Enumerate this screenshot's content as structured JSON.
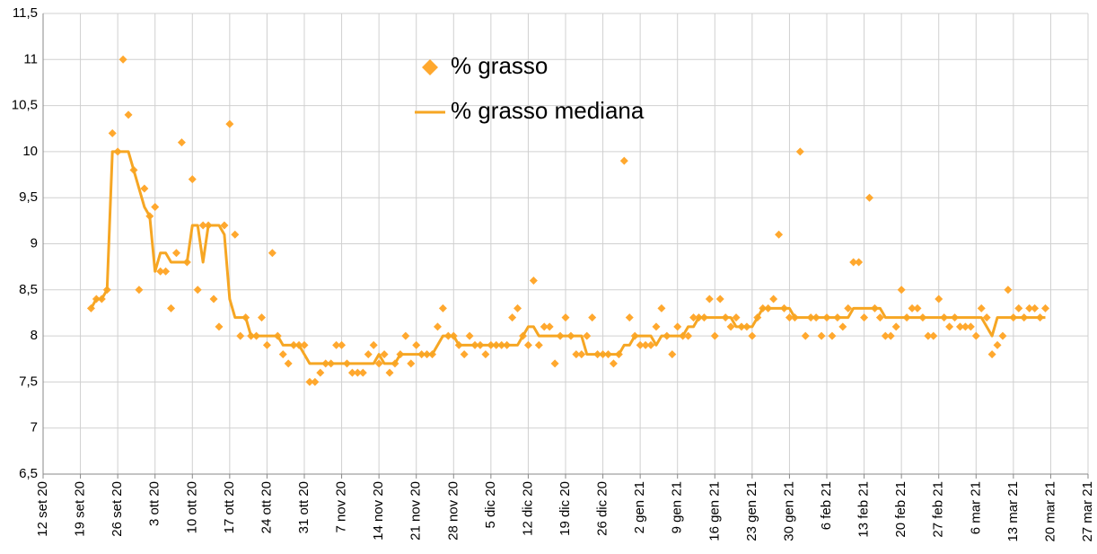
{
  "chart_data": {
    "type": "scatter_line",
    "x": [
      "2020-09-21",
      "2020-09-22",
      "2020-09-23",
      "2020-09-24",
      "2020-09-25",
      "2020-09-26",
      "2020-09-27",
      "2020-09-28",
      "2020-09-29",
      "2020-09-30",
      "2020-10-01",
      "2020-10-02",
      "2020-10-03",
      "2020-10-04",
      "2020-10-05",
      "2020-10-06",
      "2020-10-07",
      "2020-10-08",
      "2020-10-09",
      "2020-10-10",
      "2020-10-11",
      "2020-10-12",
      "2020-10-13",
      "2020-10-14",
      "2020-10-15",
      "2020-10-16",
      "2020-10-17",
      "2020-10-18",
      "2020-10-19",
      "2020-10-20",
      "2020-10-21",
      "2020-10-22",
      "2020-10-23",
      "2020-10-24",
      "2020-10-25",
      "2020-10-26",
      "2020-10-27",
      "2020-10-28",
      "2020-10-29",
      "2020-10-30",
      "2020-10-31",
      "2020-11-01",
      "2020-11-02",
      "2020-11-03",
      "2020-11-04",
      "2020-11-05",
      "2020-11-06",
      "2020-11-07",
      "2020-11-08",
      "2020-11-09",
      "2020-11-10",
      "2020-11-11",
      "2020-11-12",
      "2020-11-13",
      "2020-11-14",
      "2020-11-15",
      "2020-11-16",
      "2020-11-17",
      "2020-11-18",
      "2020-11-19",
      "2020-11-20",
      "2020-11-21",
      "2020-11-22",
      "2020-11-23",
      "2020-11-24",
      "2020-11-25",
      "2020-11-26",
      "2020-11-27",
      "2020-11-28",
      "2020-11-29",
      "2020-11-30",
      "2020-12-01",
      "2020-12-02",
      "2020-12-03",
      "2020-12-04",
      "2020-12-05",
      "2020-12-06",
      "2020-12-07",
      "2020-12-08",
      "2020-12-09",
      "2020-12-10",
      "2020-12-11",
      "2020-12-12",
      "2020-12-13",
      "2020-12-14",
      "2020-12-15",
      "2020-12-16",
      "2020-12-17",
      "2020-12-18",
      "2020-12-19",
      "2020-12-20",
      "2020-12-21",
      "2020-12-22",
      "2020-12-23",
      "2020-12-24",
      "2020-12-25",
      "2020-12-26",
      "2020-12-27",
      "2020-12-28",
      "2020-12-29",
      "2020-12-30",
      "2020-12-31",
      "2021-01-01",
      "2021-01-02",
      "2021-01-03",
      "2021-01-04",
      "2021-01-05",
      "2021-01-06",
      "2021-01-07",
      "2021-01-08",
      "2021-01-09",
      "2021-01-10",
      "2021-01-11",
      "2021-01-12",
      "2021-01-13",
      "2021-01-14",
      "2021-01-15",
      "2021-01-16",
      "2021-01-17",
      "2021-01-18",
      "2021-01-19",
      "2021-01-20",
      "2021-01-21",
      "2021-01-22",
      "2021-01-23",
      "2021-01-24",
      "2021-01-25",
      "2021-01-26",
      "2021-01-27",
      "2021-01-28",
      "2021-01-29",
      "2021-01-30",
      "2021-01-31",
      "2021-02-01",
      "2021-02-02",
      "2021-02-03",
      "2021-02-04",
      "2021-02-05",
      "2021-02-06",
      "2021-02-07",
      "2021-02-08",
      "2021-02-09",
      "2021-02-10",
      "2021-02-11",
      "2021-02-12",
      "2021-02-13",
      "2021-02-14",
      "2021-02-15",
      "2021-02-16",
      "2021-02-17",
      "2021-02-18",
      "2021-02-19",
      "2021-02-20",
      "2021-02-21",
      "2021-02-22",
      "2021-02-23",
      "2021-02-24",
      "2021-02-25",
      "2021-02-26",
      "2021-02-27",
      "2021-02-28",
      "2021-03-01",
      "2021-03-02",
      "2021-03-03",
      "2021-03-04",
      "2021-03-05",
      "2021-03-06",
      "2021-03-07",
      "2021-03-08",
      "2021-03-09",
      "2021-03-10",
      "2021-03-11",
      "2021-03-12",
      "2021-03-13",
      "2021-03-14",
      "2021-03-15",
      "2021-03-16",
      "2021-03-17",
      "2021-03-18",
      "2021-03-19"
    ],
    "series": [
      {
        "name": "% grasso",
        "kind": "scatter",
        "color": "#ffa82e",
        "values": [
          8.3,
          8.4,
          8.4,
          8.5,
          10.2,
          10.0,
          11,
          10.4,
          9.8,
          8.5,
          9.6,
          9.3,
          9.4,
          8.7,
          8.7,
          8.3,
          8.9,
          10.1,
          8.8,
          9.7,
          8.5,
          9.2,
          9.2,
          8.4,
          8.1,
          9.2,
          10.3,
          9.1,
          8.0,
          8.2,
          8.0,
          8.0,
          8.2,
          7.9,
          8.9,
          8.0,
          7.8,
          7.7,
          7.9,
          7.9,
          7.9,
          7.5,
          7.5,
          7.6,
          7.7,
          7.7,
          7.9,
          7.9,
          7.7,
          7.6,
          7.6,
          7.6,
          7.8,
          7.9,
          7.7,
          7.8,
          7.6,
          7.7,
          7.8,
          8.0,
          7.7,
          7.9,
          7.8,
          7.8,
          7.8,
          8.1,
          8.3,
          8.0,
          8.0,
          7.9,
          7.8,
          8.0,
          7.9,
          7.9,
          7.8,
          7.9,
          7.9,
          7.9,
          7.9,
          8.2,
          8.3,
          8.0,
          7.9,
          8.6,
          7.9,
          8.1,
          8.1,
          7.7,
          8.0,
          8.2,
          8.0,
          7.8,
          7.8,
          8.0,
          8.2,
          7.8,
          7.8,
          7.8,
          7.7,
          7.8,
          9.9,
          8.2,
          8.0,
          7.9,
          7.9,
          7.9,
          8.1,
          8.3,
          8.0,
          7.8,
          8.1,
          8.0,
          8.0,
          8.2,
          8.2,
          8.2,
          8.4,
          8.0,
          8.4,
          8.2,
          8.1,
          8.2,
          8.1,
          8.1,
          8.0,
          8.2,
          8.3,
          8.3,
          8.4,
          9.1,
          8.3,
          8.2,
          8.2,
          10.0,
          8.0,
          8.2,
          8.2,
          8.0,
          8.2,
          8.0,
          8.2,
          8.1,
          8.3,
          8.8,
          8.8,
          8.2,
          9.5,
          8.3,
          8.2,
          8.0,
          8.0,
          8.1,
          8.5,
          8.2,
          8.3,
          8.3,
          8.2,
          8.0,
          8.0,
          8.4,
          8.2,
          8.1,
          8.2,
          8.1,
          8.1,
          8.1,
          8.0,
          8.3,
          8.2,
          7.8,
          7.9,
          8.0,
          8.5,
          8.2,
          8.3,
          8.2,
          8.3,
          8.3,
          8.2,
          8.3
        ]
      },
      {
        "name": "% grasso mediana",
        "kind": "line",
        "color": "#f6a623",
        "values": [
          8.3,
          8.4,
          8.4,
          8.5,
          10,
          10,
          10,
          10,
          9.8,
          9.6,
          9.4,
          9.3,
          8.7,
          8.9,
          8.9,
          8.8,
          8.8,
          8.8,
          8.8,
          9.2,
          9.2,
          8.8,
          9.2,
          9.2,
          9.2,
          9.1,
          8.4,
          8.2,
          8.2,
          8.2,
          8.0,
          8.0,
          8.0,
          8.0,
          8.0,
          8.0,
          7.9,
          7.9,
          7.9,
          7.9,
          7.8,
          7.7,
          7.7,
          7.7,
          7.7,
          7.7,
          7.7,
          7.7,
          7.7,
          7.7,
          7.7,
          7.7,
          7.7,
          7.7,
          7.8,
          7.7,
          7.7,
          7.7,
          7.8,
          7.8,
          7.8,
          7.8,
          7.8,
          7.8,
          7.8,
          7.9,
          8.0,
          8.0,
          8.0,
          7.9,
          7.9,
          7.9,
          7.9,
          7.9,
          7.9,
          7.9,
          7.9,
          7.9,
          7.9,
          7.9,
          7.9,
          8.0,
          8.1,
          8.1,
          8.0,
          8.0,
          8.0,
          8.0,
          8.0,
          8.0,
          8.0,
          8.0,
          8.0,
          7.8,
          7.8,
          7.8,
          7.8,
          7.8,
          7.8,
          7.8,
          7.9,
          7.9,
          8.0,
          8.0,
          8.0,
          8.0,
          7.9,
          8.0,
          8.0,
          8.0,
          8.0,
          8.0,
          8.1,
          8.1,
          8.2,
          8.2,
          8.2,
          8.2,
          8.2,
          8.2,
          8.2,
          8.1,
          8.1,
          8.1,
          8.1,
          8.2,
          8.3,
          8.3,
          8.3,
          8.3,
          8.3,
          8.3,
          8.2,
          8.2,
          8.2,
          8.2,
          8.2,
          8.2,
          8.2,
          8.2,
          8.2,
          8.2,
          8.2,
          8.3,
          8.3,
          8.3,
          8.3,
          8.3,
          8.3,
          8.2,
          8.2,
          8.2,
          8.2,
          8.2,
          8.2,
          8.2,
          8.2,
          8.2,
          8.2,
          8.2,
          8.2,
          8.2,
          8.2,
          8.2,
          8.2,
          8.2,
          8.2,
          8.2,
          8.1,
          8.0,
          8.2,
          8.2,
          8.2,
          8.2,
          8.2,
          8.2,
          8.2,
          8.2,
          8.2,
          8.2
        ]
      }
    ],
    "xlim": [
      "2020-09-12",
      "2021-03-27"
    ],
    "xticks": [
      {
        "value": "2020-09-12",
        "label": "12 set 20"
      },
      {
        "value": "2020-09-19",
        "label": "19 set 20"
      },
      {
        "value": "2020-09-26",
        "label": "26 set 20"
      },
      {
        "value": "2020-10-03",
        "label": "3 ott 20"
      },
      {
        "value": "2020-10-10",
        "label": "10 ott 20"
      },
      {
        "value": "2020-10-17",
        "label": "17 ott 20"
      },
      {
        "value": "2020-10-24",
        "label": "24 ott 20"
      },
      {
        "value": "2020-10-31",
        "label": "31 ott 20"
      },
      {
        "value": "2020-11-07",
        "label": "7 nov 20"
      },
      {
        "value": "2020-11-14",
        "label": "14 nov 20"
      },
      {
        "value": "2020-11-21",
        "label": "21 nov 20"
      },
      {
        "value": "2020-11-28",
        "label": "28 nov 20"
      },
      {
        "value": "2020-12-05",
        "label": "5 dic 20"
      },
      {
        "value": "2020-12-12",
        "label": "12 dic 20"
      },
      {
        "value": "2020-12-19",
        "label": "19 dic 20"
      },
      {
        "value": "2020-12-26",
        "label": "26 dic 20"
      },
      {
        "value": "2021-01-02",
        "label": "2 gen 21"
      },
      {
        "value": "2021-01-09",
        "label": "9 gen 21"
      },
      {
        "value": "2021-01-16",
        "label": "16 gen 21"
      },
      {
        "value": "2021-01-23",
        "label": "23 gen 21"
      },
      {
        "value": "2021-01-30",
        "label": "30 gen 21"
      },
      {
        "value": "2021-02-06",
        "label": "6 feb 21"
      },
      {
        "value": "2021-02-13",
        "label": "13 feb 21"
      },
      {
        "value": "2021-02-20",
        "label": "20 feb 21"
      },
      {
        "value": "2021-02-27",
        "label": "27 feb 21"
      },
      {
        "value": "2021-03-06",
        "label": "6 mar 21"
      },
      {
        "value": "2021-03-13",
        "label": "13 mar 21"
      },
      {
        "value": "2021-03-20",
        "label": "20 mar 21"
      },
      {
        "value": "2021-03-27",
        "label": "27 mar 21"
      }
    ],
    "ylim": [
      6.5,
      11.5
    ],
    "yticks": [
      {
        "value": 6.5,
        "label": "6,5"
      },
      7,
      {
        "value": 7.5,
        "label": "7,5"
      },
      8,
      {
        "value": 8.5,
        "label": "8,5"
      },
      9,
      {
        "value": 9.5,
        "label": "9,5"
      },
      10,
      {
        "value": 10.5,
        "label": "10,5"
      },
      11,
      {
        "value": 11.5,
        "label": "11,5"
      }
    ],
    "grid": true
  }
}
